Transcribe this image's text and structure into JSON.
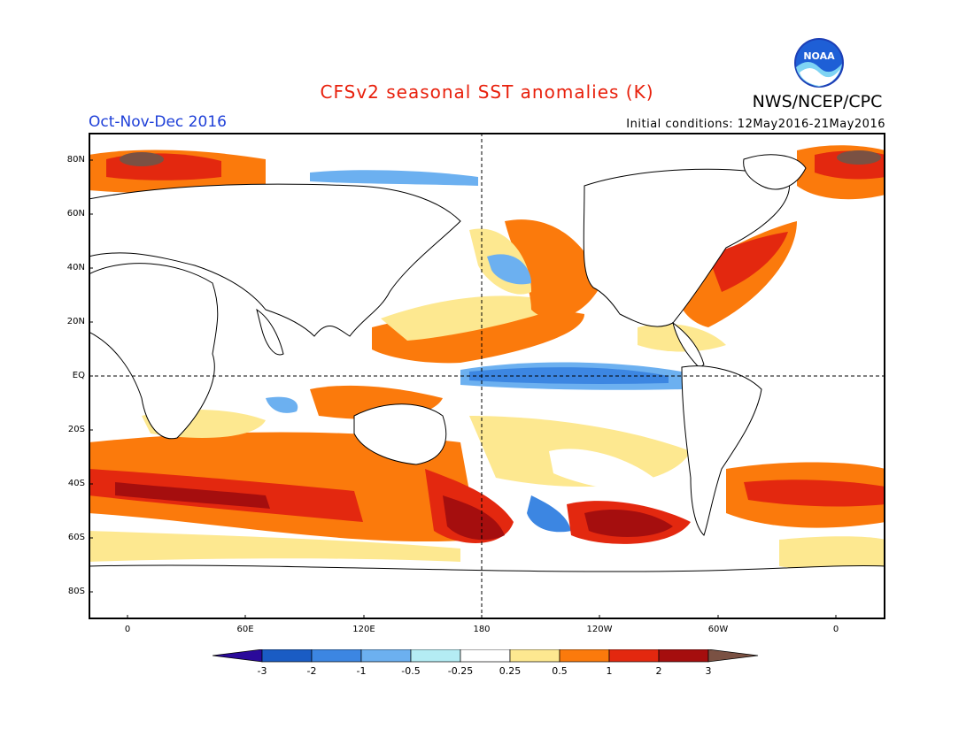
{
  "title": "CFSv2 seasonal SST anomalies (K)",
  "org": "NWS/NCEP/CPC",
  "logo_text": "NOAA",
  "season": "Oct-Nov-Dec 2016",
  "initial_conditions": "Initial conditions: 12May2016-21May2016",
  "colors": {
    "title": "#e8200c",
    "season": "#1e3fd8",
    "land": "#ffffff",
    "coastline": "#000000"
  },
  "lat_labels": [
    "80N",
    "60N",
    "40N",
    "20N",
    "EQ",
    "20S",
    "40S",
    "60S",
    "80S"
  ],
  "lon_labels": [
    "0",
    "60E",
    "120E",
    "180",
    "120W",
    "60W",
    "0"
  ],
  "colorbar": {
    "tick_labels": [
      "-3",
      "-2",
      "-1",
      "-0.5",
      "-0.25",
      "0.25",
      "0.5",
      "1",
      "2",
      "3"
    ],
    "colors": [
      "#2a0a9a",
      "#1a5cc4",
      "#3c86e2",
      "#6cb0f0",
      "#b4ecf4",
      "#ffffff",
      "#fde890",
      "#fb7a0c",
      "#e3280f",
      "#a50e0e",
      "#7a5143"
    ]
  }
}
